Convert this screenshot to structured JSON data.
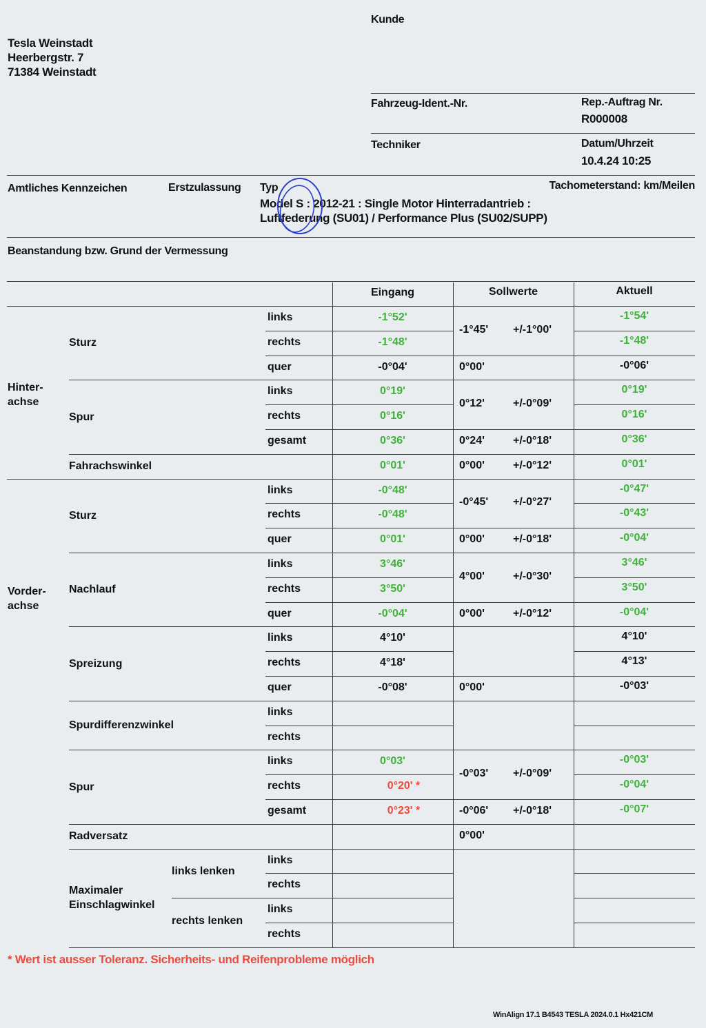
{
  "dealer": {
    "name": "Tesla Weinstadt",
    "street": "Heerbergstr. 7",
    "city": "71384 Weinstadt"
  },
  "header": {
    "customer_label": "Kunde",
    "vin_label": "Fahrzeug-Ident.-Nr.",
    "order_label": "Rep.-Auftrag Nr.",
    "order_value": "R000008",
    "technician_label": "Techniker",
    "datetime_label": "Datum/Uhrzeit",
    "datetime_value": "10.4.24 10:25",
    "plate_label": "Amtliches Kennzeichen",
    "registration_label": "Erstzulassung",
    "type_label": "Typ",
    "odometer_label": "Tachometerstand: km/Meilen",
    "type_line1": "Model S : 2012-21 : Single Motor Hinterradantrieb :",
    "type_line2": "Luftfederung (SU01) / Performance Plus (SU02/SUPP)",
    "complaint_label": "Beanstandung bzw. Grund der Vermessung"
  },
  "table": {
    "columns": [
      "Eingang",
      "Sollwerte",
      "Aktuell"
    ],
    "axles": [
      {
        "label": "Hinter-\nachse"
      },
      {
        "label": "Vorder-\nachse"
      }
    ],
    "groups": [
      {
        "label": "Sturz",
        "start": 0,
        "span": 3
      },
      {
        "label": "Spur",
        "start": 3,
        "span": 3
      },
      {
        "label": "Fahrachswinkel",
        "start": 6,
        "span": 1
      },
      {
        "label": "Sturz",
        "start": 7,
        "span": 3
      },
      {
        "label": "Nachlauf",
        "start": 10,
        "span": 3
      },
      {
        "label": "Spreizung",
        "start": 13,
        "span": 3
      },
      {
        "label": "Spurdifferenzwinkel",
        "start": 16,
        "span": 2
      },
      {
        "label": "Spur",
        "start": 18,
        "span": 3
      },
      {
        "label": "Radversatz",
        "start": 21,
        "span": 1
      },
      {
        "label": "Maximaler\nEinschlagwinkel",
        "start": 22,
        "span": 4
      }
    ],
    "subgroups": [
      {
        "label": "links lenken",
        "start": 22,
        "span": 2
      },
      {
        "label": "rechts lenken",
        "start": 24,
        "span": 2
      }
    ],
    "rows": [
      {
        "side": "links",
        "in": "-1°52'",
        "in_status": "g",
        "out": "-1°54'",
        "out_status": "g"
      },
      {
        "side": "rechts",
        "in": "-1°48'",
        "in_status": "g",
        "out": "-1°48'",
        "out_status": "g"
      },
      {
        "side": "quer",
        "in": "-0°04'",
        "in_status": "k",
        "out": "-0°06'",
        "out_status": "k"
      },
      {
        "side": "links",
        "in": "0°19'",
        "in_status": "g",
        "out": "0°19'",
        "out_status": "g"
      },
      {
        "side": "rechts",
        "in": "0°16'",
        "in_status": "g",
        "out": "0°16'",
        "out_status": "g"
      },
      {
        "side": "gesamt",
        "in": "0°36'",
        "in_status": "g",
        "out": "0°36'",
        "out_status": "g"
      },
      {
        "side": "",
        "in": "0°01'",
        "in_status": "g",
        "out": "0°01'",
        "out_status": "g"
      },
      {
        "side": "links",
        "in": "-0°48'",
        "in_status": "g",
        "out": "-0°47'",
        "out_status": "g"
      },
      {
        "side": "rechts",
        "in": "-0°48'",
        "in_status": "g",
        "out": "-0°43'",
        "out_status": "g"
      },
      {
        "side": "quer",
        "in": "0°01'",
        "in_status": "g",
        "out": "-0°04'",
        "out_status": "g"
      },
      {
        "side": "links",
        "in": "3°46'",
        "in_status": "g",
        "out": "3°46'",
        "out_status": "g"
      },
      {
        "side": "rechts",
        "in": "3°50'",
        "in_status": "g",
        "out": "3°50'",
        "out_status": "g"
      },
      {
        "side": "quer",
        "in": "-0°04'",
        "in_status": "g",
        "out": "-0°04'",
        "out_status": "g"
      },
      {
        "side": "links",
        "in": "4°10'",
        "in_status": "k",
        "out": "4°10'",
        "out_status": "k"
      },
      {
        "side": "rechts",
        "in": "4°18'",
        "in_status": "k",
        "out": "4°13'",
        "out_status": "k"
      },
      {
        "side": "quer",
        "in": "-0°08'",
        "in_status": "k",
        "out": "-0°03'",
        "out_status": "k"
      },
      {
        "side": "links",
        "in": "",
        "in_status": "k",
        "out": "",
        "out_status": "k"
      },
      {
        "side": "rechts",
        "in": "",
        "in_status": "k",
        "out": "",
        "out_status": "k"
      },
      {
        "side": "links",
        "in": "0°03'",
        "in_status": "g",
        "out": "-0°03'",
        "out_status": "g"
      },
      {
        "side": "rechts",
        "in": "0°20' *",
        "in_status": "r",
        "out": "-0°04'",
        "out_status": "g"
      },
      {
        "side": "gesamt",
        "in": "0°23' *",
        "in_status": "r",
        "out": "-0°07'",
        "out_status": "g"
      },
      {
        "side": "",
        "in": "",
        "in_status": "k",
        "out": "",
        "out_status": "k"
      },
      {
        "side": "links",
        "in": "",
        "in_status": "k",
        "out": "",
        "out_status": "k"
      },
      {
        "side": "rechts",
        "in": "",
        "in_status": "k",
        "out": "",
        "out_status": "k"
      },
      {
        "side": "links",
        "in": "",
        "in_status": "k",
        "out": "",
        "out_status": "k"
      },
      {
        "side": "rechts",
        "in": "",
        "in_status": "k",
        "out": "",
        "out_status": "k"
      }
    ],
    "nominal": [
      {
        "start": 0,
        "span": 2,
        "value": "-1°45'",
        "tol": "+/-1°00'"
      },
      {
        "start": 2,
        "span": 1,
        "value": "0°00'",
        "tol": ""
      },
      {
        "start": 3,
        "span": 2,
        "value": "0°12'",
        "tol": "+/-0°09'"
      },
      {
        "start": 5,
        "span": 1,
        "value": "0°24'",
        "tol": "+/-0°18'"
      },
      {
        "start": 6,
        "span": 1,
        "value": "0°00'",
        "tol": "+/-0°12'"
      },
      {
        "start": 7,
        "span": 2,
        "value": "-0°45'",
        "tol": "+/-0°27'"
      },
      {
        "start": 9,
        "span": 1,
        "value": "0°00'",
        "tol": "+/-0°18'"
      },
      {
        "start": 10,
        "span": 2,
        "value": "4°00'",
        "tol": "+/-0°30'"
      },
      {
        "start": 12,
        "span": 1,
        "value": "0°00'",
        "tol": "+/-0°12'"
      },
      {
        "start": 13,
        "span": 2,
        "value": "",
        "tol": ""
      },
      {
        "start": 15,
        "span": 1,
        "value": "0°00'",
        "tol": ""
      },
      {
        "start": 16,
        "span": 2,
        "value": "",
        "tol": ""
      },
      {
        "start": 18,
        "span": 2,
        "value": "-0°03'",
        "tol": "+/-0°09'"
      },
      {
        "start": 20,
        "span": 1,
        "value": "-0°06'",
        "tol": "+/-0°18'"
      },
      {
        "start": 21,
        "span": 1,
        "value": "0°00'",
        "tol": ""
      },
      {
        "start": 22,
        "span": 4,
        "value": "",
        "tol": ""
      }
    ]
  },
  "status_colors": {
    "g": "#3fb23a",
    "k": "#111111",
    "r": "#ec4a3c"
  },
  "footnote": "* Wert ist ausser Toleranz. Sicherheits- und Reifenprobleme möglich",
  "footer": "WinAlign 17.1 B4543  TESLA 2024.0.1 Hx421CM",
  "stamp_color": "#2b3fc8"
}
